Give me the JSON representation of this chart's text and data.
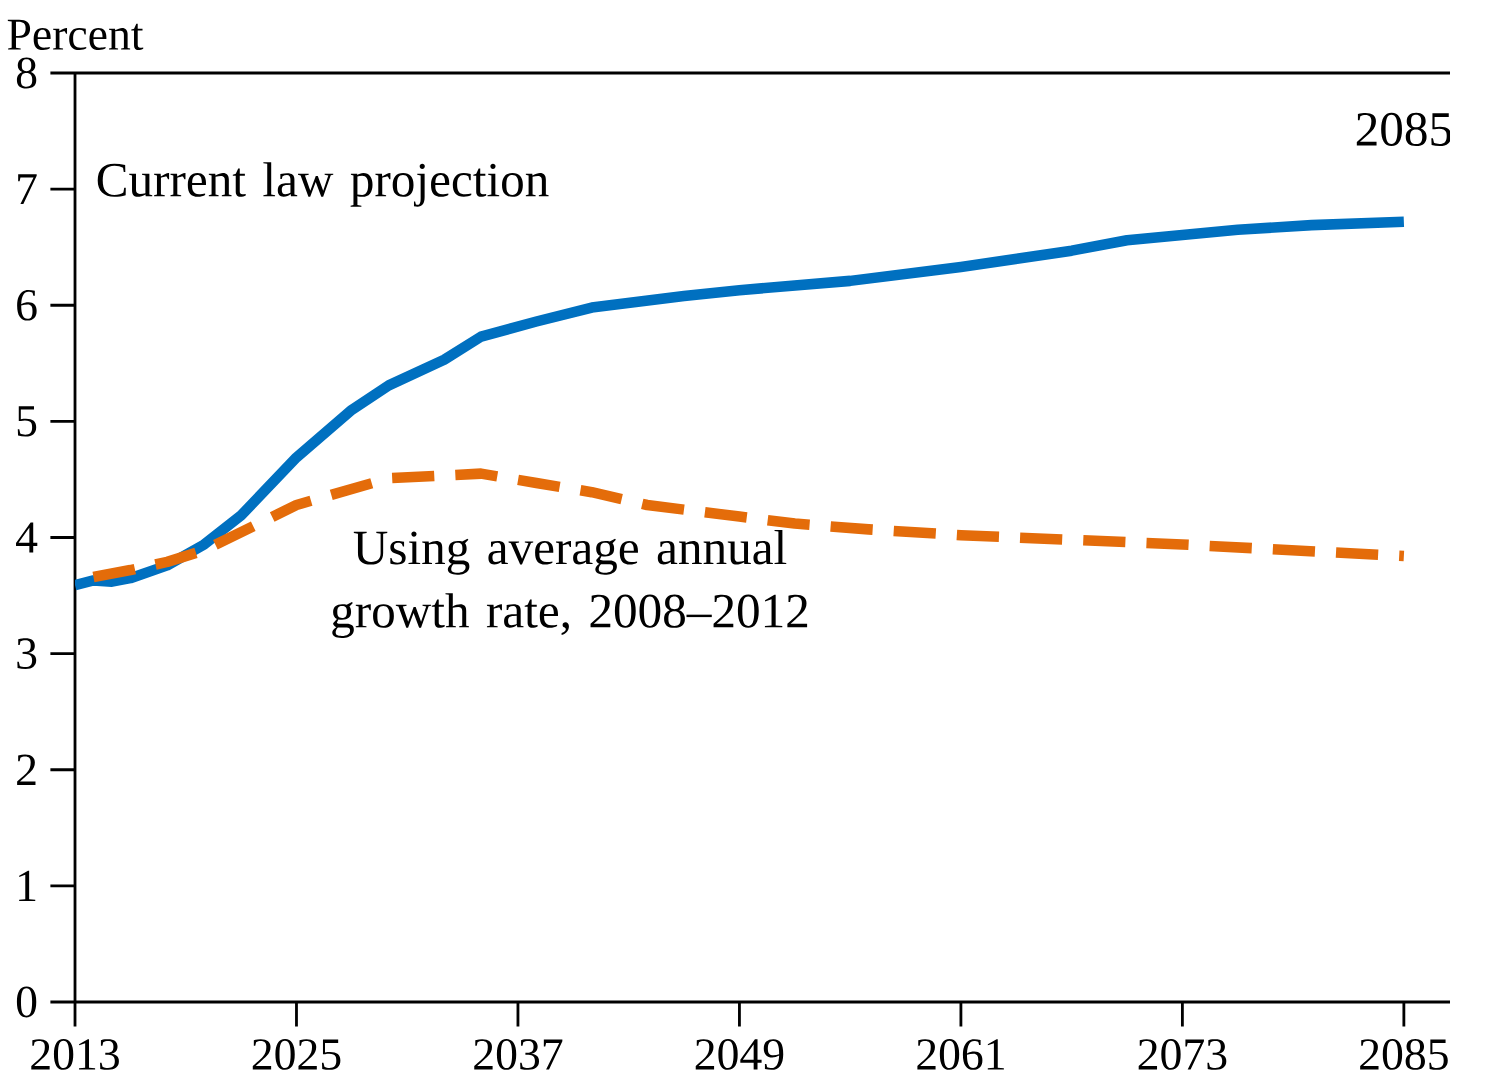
{
  "chart_data": {
    "type": "line",
    "ylabel": "Percent",
    "xlim": [
      2013,
      2087.5
    ],
    "xticks": [
      2013,
      2025,
      2037,
      2049,
      2061,
      2073,
      2085
    ],
    "ylim": [
      0,
      8
    ],
    "yticks": [
      0,
      1,
      2,
      3,
      4,
      5,
      6,
      7,
      8
    ],
    "grid": false,
    "legend": false,
    "series": [
      {
        "name": "Current law projection",
        "color": "#0070c0",
        "line_style": "solid",
        "x": [
          2013,
          2014,
          2015,
          2016,
          2018,
          2020,
          2022,
          2025,
          2028,
          2030,
          2033,
          2035,
          2038,
          2041,
          2046,
          2049,
          2055,
          2061,
          2067,
          2070,
          2076,
          2080,
          2085
        ],
        "values": [
          3.59,
          3.63,
          3.62,
          3.65,
          3.76,
          3.94,
          4.19,
          4.69,
          5.1,
          5.31,
          5.53,
          5.73,
          5.86,
          5.98,
          6.08,
          6.13,
          6.21,
          6.33,
          6.47,
          6.56,
          6.65,
          6.69,
          6.72
        ]
      },
      {
        "name": "Using average annual growth rate, 2008–2012",
        "color": "#e46c0a",
        "line_style": "dashed",
        "x": [
          2014,
          2016,
          2018,
          2020,
          2025,
          2030,
          2035,
          2038,
          2041,
          2044,
          2049,
          2052,
          2056,
          2061,
          2067,
          2073,
          2079,
          2085
        ],
        "values": [
          3.66,
          3.72,
          3.79,
          3.89,
          4.28,
          4.51,
          4.55,
          4.47,
          4.39,
          4.28,
          4.18,
          4.12,
          4.07,
          4.02,
          3.98,
          3.94,
          3.89,
          3.84
        ]
      }
    ],
    "annotations": [
      {
        "text": "2085",
        "x": 2085,
        "y": 6.72
      }
    ]
  }
}
